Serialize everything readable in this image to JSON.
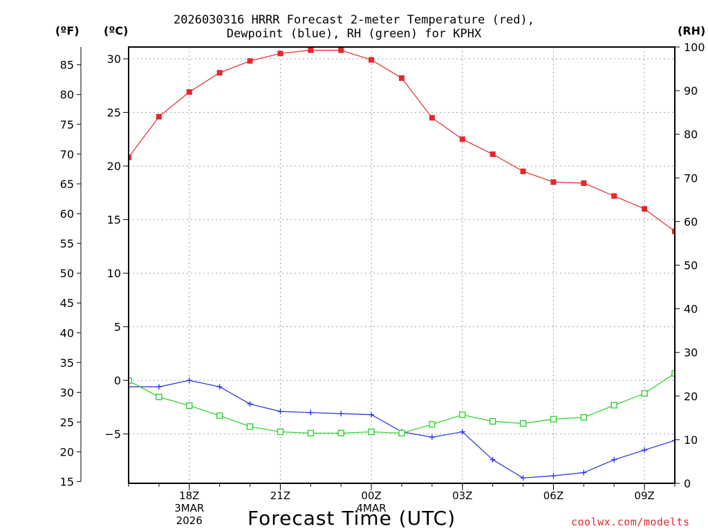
{
  "title_line1": "2026030316 HRRR Forecast 2-meter Temperature (red),",
  "title_line2": "Dewpoint (blue), RH (green) for KPHX",
  "unit_f": "(ºF)",
  "unit_c": "(ºC)",
  "unit_rh": "(RH)",
  "xlabel": "Forecast Time (UTC)",
  "credit": "coolwx.com/modelts",
  "colors": {
    "temperature": "#e8262b",
    "dewpoint": "#1f2fe0",
    "rh": "#1fd21f",
    "grid": "#9a9a9a"
  },
  "chart_data": {
    "type": "line",
    "title": "2026030316 HRRR Forecast 2-meter Temperature (red), Dewpoint (blue), RH (green) for KPHX",
    "xlabel": "Forecast Time (UTC)",
    "x_hours_from_16Z_3MAR": [
      0,
      1,
      2,
      3,
      4,
      5,
      6,
      7,
      8,
      9,
      10,
      11,
      12,
      13,
      14,
      15,
      16,
      17,
      18
    ],
    "x_tick_labels": [
      {
        "hour": 2,
        "lines": [
          "18Z",
          "3MAR",
          "2026"
        ]
      },
      {
        "hour": 5,
        "lines": [
          "21Z"
        ]
      },
      {
        "hour": 8,
        "lines": [
          "00Z",
          "4MAR"
        ]
      },
      {
        "hour": 11,
        "lines": [
          "03Z"
        ]
      },
      {
        "hour": 14,
        "lines": [
          "06Z"
        ]
      },
      {
        "hour": 17,
        "lines": [
          "09Z"
        ]
      }
    ],
    "xlim": [
      0,
      18
    ],
    "left_axis_c": {
      "label": "(ºC)",
      "ylim": [
        -9.6,
        31.1
      ],
      "ticks": [
        30,
        25,
        20,
        15,
        10,
        5,
        0,
        -5
      ]
    },
    "left_axis_f": {
      "label": "(ºF)",
      "ticks": [
        85,
        80,
        75,
        70,
        65,
        60,
        55,
        50,
        45,
        40,
        35,
        30,
        25,
        20,
        15
      ]
    },
    "right_axis_rh": {
      "label": "(RH)",
      "ylim": [
        0,
        100
      ],
      "ticks": [
        100,
        90,
        80,
        70,
        60,
        50,
        40,
        30,
        20,
        10,
        0
      ]
    },
    "grid": true,
    "series": [
      {
        "name": "Temperature (red)",
        "axis": "C",
        "marker": "filled-square",
        "values": [
          20.8,
          24.6,
          26.9,
          28.7,
          29.8,
          30.5,
          30.8,
          30.8,
          29.9,
          28.2,
          24.5,
          22.5,
          21.1,
          19.5,
          18.5,
          18.4,
          17.2,
          16.0,
          13.9
        ]
      },
      {
        "name": "Dewpoint (blue)",
        "axis": "C",
        "marker": "plus",
        "values": [
          -0.6,
          -0.6,
          0.0,
          -0.6,
          -2.2,
          -2.9,
          -3.0,
          -3.1,
          -3.2,
          -4.8,
          -5.3,
          -4.8,
          -7.4,
          -9.1,
          -8.9,
          -8.6,
          -7.4,
          -6.5,
          -5.6
        ]
      },
      {
        "name": "RH (green)",
        "axis": "RH",
        "marker": "open-square",
        "values": [
          23.5,
          19.8,
          17.8,
          15.5,
          13.0,
          11.8,
          11.5,
          11.5,
          11.8,
          11.5,
          13.5,
          15.7,
          14.2,
          13.7,
          14.7,
          15.1,
          17.9,
          20.6,
          25.2
        ]
      }
    ]
  }
}
